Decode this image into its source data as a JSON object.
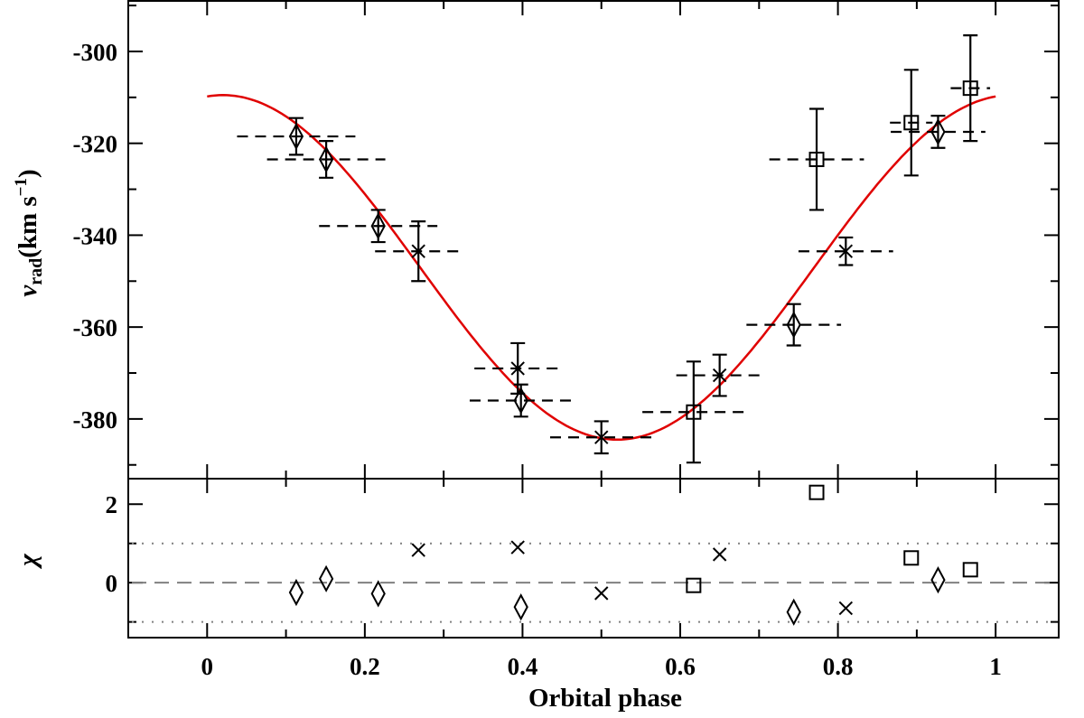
{
  "chart_data": {
    "type": "scatter",
    "xlabel": "Orbital phase",
    "x_ticks": [
      "0",
      "0.2",
      "0.4",
      "0.6",
      "0.8",
      "1"
    ],
    "x_tick_values": [
      0,
      0.2,
      0.4,
      0.6,
      0.8,
      1
    ],
    "xlim": [
      -0.1,
      1.08
    ],
    "top_panel": {
      "ylabel_main": "v",
      "ylabel_sub": "rad",
      "ylabel_unit": "(km s",
      "ylabel_exp": "−1",
      "ylabel_close": ")",
      "ylim": [
        -393,
        -289
      ],
      "y_ticks": [
        "-300",
        "-320",
        "-340",
        "-360",
        "-380"
      ],
      "y_tick_values": [
        -300,
        -320,
        -340,
        -360,
        -380
      ],
      "fit_curve": {
        "color": "#e00000",
        "mean": -347,
        "amplitude": 37.5,
        "phase_of_min": 0.52
      },
      "points": [
        {
          "marker": "diamond",
          "phase": 0.113,
          "v": -318.5,
          "err": 4.0,
          "xerr": 0.075
        },
        {
          "marker": "diamond",
          "phase": 0.151,
          "v": -323.5,
          "err": 4.0,
          "xerr": 0.075
        },
        {
          "marker": "diamond",
          "phase": 0.217,
          "v": -338.0,
          "err": 3.5,
          "xerr": 0.075
        },
        {
          "marker": "cross",
          "phase": 0.268,
          "v": -343.5,
          "err": 6.5,
          "xerr": 0.055
        },
        {
          "marker": "cross",
          "phase": 0.394,
          "v": -369.0,
          "err": 5.5,
          "xerr": 0.055
        },
        {
          "marker": "diamond",
          "phase": 0.398,
          "v": -376.0,
          "err": 3.5,
          "xerr": 0.065
        },
        {
          "marker": "cross",
          "phase": 0.5,
          "v": -384.0,
          "err": 3.5,
          "xerr": 0.065
        },
        {
          "marker": "square",
          "phase": 0.617,
          "v": -378.5,
          "err": 11.0,
          "xerr": 0.065
        },
        {
          "marker": "cross",
          "phase": 0.65,
          "v": -370.5,
          "err": 4.5,
          "xerr": 0.055
        },
        {
          "marker": "diamond",
          "phase": 0.744,
          "v": -359.5,
          "err": 4.5,
          "xerr": 0.06
        },
        {
          "marker": "square",
          "phase": 0.773,
          "v": -323.5,
          "err": 11.0,
          "xerr": 0.06
        },
        {
          "marker": "cross",
          "phase": 0.81,
          "v": -343.5,
          "err": 3.0,
          "xerr": 0.06
        },
        {
          "marker": "square",
          "phase": 0.893,
          "v": -315.5,
          "err": 11.5,
          "xerr": 0.027
        },
        {
          "marker": "diamond",
          "phase": 0.927,
          "v": -317.5,
          "err": 3.5,
          "xerr": 0.06
        },
        {
          "marker": "square",
          "phase": 0.968,
          "v": -308.0,
          "err": 11.5,
          "xerr": 0.025
        }
      ]
    },
    "bottom_panel": {
      "ylabel": "χ",
      "ylim": [
        -1.4,
        2.65
      ],
      "y_ticks": [
        "0",
        "2"
      ],
      "y_tick_values": [
        0,
        2
      ],
      "reference_lines": [
        {
          "y": 0,
          "style": "dashed",
          "color": "#808080"
        },
        {
          "y": 1,
          "style": "dotted",
          "color": "#808080"
        },
        {
          "y": -1,
          "style": "dotted",
          "color": "#808080"
        }
      ],
      "points": [
        {
          "marker": "diamond",
          "phase": 0.113,
          "chi": -0.25
        },
        {
          "marker": "diamond",
          "phase": 0.151,
          "chi": 0.1
        },
        {
          "marker": "diamond",
          "phase": 0.217,
          "chi": -0.28
        },
        {
          "marker": "cross",
          "phase": 0.268,
          "chi": 0.83
        },
        {
          "marker": "cross",
          "phase": 0.394,
          "chi": 0.9
        },
        {
          "marker": "diamond",
          "phase": 0.398,
          "chi": -0.62
        },
        {
          "marker": "cross",
          "phase": 0.5,
          "chi": -0.27
        },
        {
          "marker": "square",
          "phase": 0.617,
          "chi": -0.07
        },
        {
          "marker": "cross",
          "phase": 0.65,
          "chi": 0.72
        },
        {
          "marker": "diamond",
          "phase": 0.744,
          "chi": -0.75
        },
        {
          "marker": "square",
          "phase": 0.773,
          "chi": 2.3
        },
        {
          "marker": "cross",
          "phase": 0.81,
          "chi": -0.65
        },
        {
          "marker": "square",
          "phase": 0.893,
          "chi": 0.63
        },
        {
          "marker": "diamond",
          "phase": 0.927,
          "chi": 0.07
        },
        {
          "marker": "square",
          "phase": 0.968,
          "chi": 0.33
        }
      ]
    }
  }
}
